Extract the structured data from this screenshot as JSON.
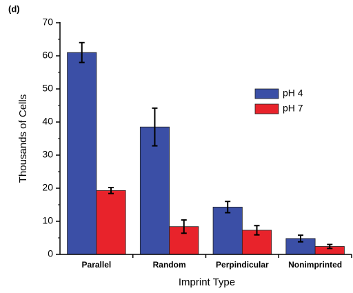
{
  "chart_data": {
    "type": "bar",
    "panel_label": "(d)",
    "x_label": "Imprint Type",
    "y_label": "Thousands of Cells",
    "categories": [
      "Parallel",
      "Random",
      "Perpindicular",
      "Nonimprinted"
    ],
    "series": [
      {
        "name": "pH 4",
        "color": "#3b4fa6",
        "values": [
          61,
          38.5,
          14.3,
          4.8
        ],
        "errors": [
          3,
          5.7,
          1.7,
          1.0
        ]
      },
      {
        "name": "pH 7",
        "color": "#e8232b",
        "values": [
          19.3,
          8.4,
          7.3,
          2.4
        ],
        "errors": [
          0.9,
          2.0,
          1.4,
          0.6
        ]
      }
    ],
    "ylim": [
      0,
      70
    ],
    "yticks": [
      0,
      10,
      20,
      30,
      40,
      50,
      60,
      70
    ],
    "legend": "upper right"
  }
}
